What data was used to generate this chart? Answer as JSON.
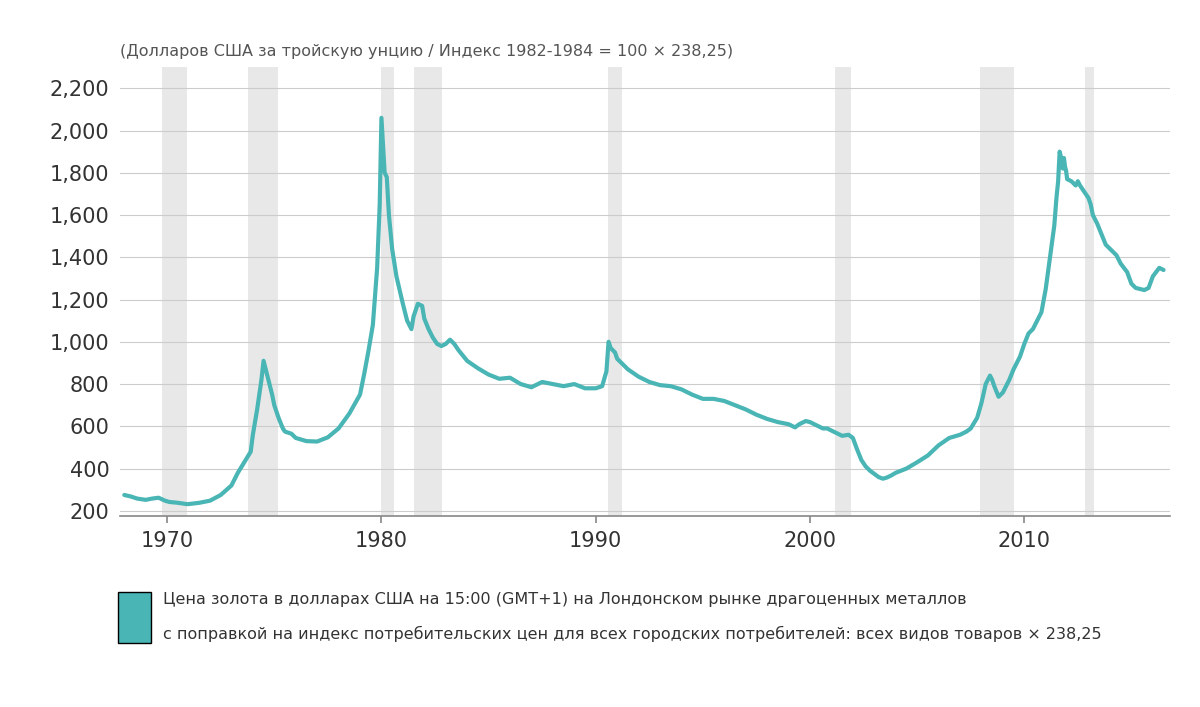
{
  "title": "(Долларов США за тройскую унцию / Индекс 1982-1984 = 100 × 238,25)",
  "line_color": "#4ab5b5",
  "background_color": "#ffffff",
  "recession_color": "#e8e8e8",
  "grid_color": "#cccccc",
  "text_color": "#333333",
  "title_color": "#555555",
  "legend_line1": "Цена золота в долларах США на 15:00 (GMT+1) на Лондонском рынке драгоценных металлов",
  "legend_line2": "с поправкой на индекс потребительских цен для всех городских потребителей: всех видов товаров × 238,25",
  "recession_bands": [
    [
      1969.75,
      1970.92
    ],
    [
      1973.75,
      1975.17
    ],
    [
      1980.0,
      1980.58
    ],
    [
      1981.5,
      1982.83
    ],
    [
      1990.58,
      1991.25
    ],
    [
      2001.17,
      2001.92
    ],
    [
      2007.92,
      2009.5
    ],
    [
      2012.83,
      2013.25
    ]
  ],
  "yticks": [
    200,
    400,
    600,
    800,
    1000,
    1200,
    1400,
    1600,
    1800,
    2000,
    2200
  ],
  "xticks": [
    1970,
    1980,
    1990,
    2000,
    2010
  ],
  "ylim": [
    175,
    2300
  ],
  "xlim": [
    1967.8,
    2016.8
  ],
  "data": [
    [
      1968.0,
      275
    ],
    [
      1968.3,
      268
    ],
    [
      1968.6,
      258
    ],
    [
      1969.0,
      252
    ],
    [
      1969.3,
      258
    ],
    [
      1969.6,
      262
    ],
    [
      1969.9,
      248
    ],
    [
      1970.1,
      242
    ],
    [
      1970.5,
      238
    ],
    [
      1970.9,
      232
    ],
    [
      1971.0,
      232
    ],
    [
      1971.5,
      238
    ],
    [
      1972.0,
      248
    ],
    [
      1972.5,
      275
    ],
    [
      1973.0,
      320
    ],
    [
      1973.3,
      380
    ],
    [
      1973.6,
      430
    ],
    [
      1973.9,
      480
    ],
    [
      1974.0,
      560
    ],
    [
      1974.2,
      680
    ],
    [
      1974.4,
      820
    ],
    [
      1974.5,
      910
    ],
    [
      1974.6,
      870
    ],
    [
      1974.8,
      790
    ],
    [
      1974.9,
      750
    ],
    [
      1975.0,
      700
    ],
    [
      1975.2,
      640
    ],
    [
      1975.4,
      590
    ],
    [
      1975.5,
      575
    ],
    [
      1975.8,
      565
    ],
    [
      1976.0,
      545
    ],
    [
      1976.5,
      530
    ],
    [
      1977.0,
      528
    ],
    [
      1977.5,
      548
    ],
    [
      1978.0,
      590
    ],
    [
      1978.5,
      660
    ],
    [
      1979.0,
      750
    ],
    [
      1979.2,
      850
    ],
    [
      1979.4,
      960
    ],
    [
      1979.6,
      1080
    ],
    [
      1979.8,
      1350
    ],
    [
      1979.92,
      1650
    ],
    [
      1980.0,
      2060
    ],
    [
      1980.08,
      1920
    ],
    [
      1980.15,
      1800
    ],
    [
      1980.25,
      1780
    ],
    [
      1980.35,
      1600
    ],
    [
      1980.5,
      1440
    ],
    [
      1980.7,
      1310
    ],
    [
      1981.0,
      1180
    ],
    [
      1981.2,
      1100
    ],
    [
      1981.4,
      1060
    ],
    [
      1981.5,
      1120
    ],
    [
      1981.7,
      1180
    ],
    [
      1981.9,
      1170
    ],
    [
      1982.0,
      1110
    ],
    [
      1982.2,
      1060
    ],
    [
      1982.4,
      1020
    ],
    [
      1982.6,
      990
    ],
    [
      1982.8,
      980
    ],
    [
      1983.0,
      990
    ],
    [
      1983.2,
      1010
    ],
    [
      1983.4,
      990
    ],
    [
      1983.6,
      960
    ],
    [
      1984.0,
      910
    ],
    [
      1984.5,
      875
    ],
    [
      1985.0,
      845
    ],
    [
      1985.5,
      825
    ],
    [
      1986.0,
      830
    ],
    [
      1986.5,
      800
    ],
    [
      1987.0,
      785
    ],
    [
      1987.5,
      810
    ],
    [
      1988.0,
      800
    ],
    [
      1988.5,
      790
    ],
    [
      1989.0,
      800
    ],
    [
      1989.5,
      780
    ],
    [
      1990.0,
      780
    ],
    [
      1990.3,
      790
    ],
    [
      1990.5,
      860
    ],
    [
      1990.6,
      1000
    ],
    [
      1990.7,
      970
    ],
    [
      1990.9,
      950
    ],
    [
      1991.0,
      920
    ],
    [
      1991.2,
      900
    ],
    [
      1991.5,
      870
    ],
    [
      1992.0,
      835
    ],
    [
      1992.5,
      810
    ],
    [
      1993.0,
      795
    ],
    [
      1993.5,
      790
    ],
    [
      1994.0,
      775
    ],
    [
      1994.5,
      750
    ],
    [
      1995.0,
      730
    ],
    [
      1995.5,
      730
    ],
    [
      1996.0,
      720
    ],
    [
      1996.5,
      700
    ],
    [
      1997.0,
      680
    ],
    [
      1997.5,
      655
    ],
    [
      1998.0,
      635
    ],
    [
      1998.5,
      620
    ],
    [
      1999.0,
      610
    ],
    [
      1999.3,
      595
    ],
    [
      1999.5,
      610
    ],
    [
      1999.8,
      625
    ],
    [
      2000.0,
      620
    ],
    [
      2000.2,
      610
    ],
    [
      2000.4,
      600
    ],
    [
      2000.6,
      590
    ],
    [
      2000.8,
      590
    ],
    [
      2001.0,
      580
    ],
    [
      2001.2,
      570
    ],
    [
      2001.5,
      555
    ],
    [
      2001.8,
      560
    ],
    [
      2002.0,
      545
    ],
    [
      2002.2,
      490
    ],
    [
      2002.4,
      440
    ],
    [
      2002.6,
      410
    ],
    [
      2002.8,
      390
    ],
    [
      2003.0,
      375
    ],
    [
      2003.2,
      360
    ],
    [
      2003.4,
      352
    ],
    [
      2003.6,
      358
    ],
    [
      2003.8,
      368
    ],
    [
      2004.0,
      380
    ],
    [
      2004.5,
      400
    ],
    [
      2005.0,
      430
    ],
    [
      2005.5,
      462
    ],
    [
      2006.0,
      510
    ],
    [
      2006.5,
      545
    ],
    [
      2007.0,
      560
    ],
    [
      2007.3,
      575
    ],
    [
      2007.5,
      590
    ],
    [
      2007.8,
      640
    ],
    [
      2008.0,
      710
    ],
    [
      2008.2,
      800
    ],
    [
      2008.4,
      840
    ],
    [
      2008.5,
      820
    ],
    [
      2008.6,
      790
    ],
    [
      2008.8,
      740
    ],
    [
      2009.0,
      760
    ],
    [
      2009.3,
      820
    ],
    [
      2009.5,
      870
    ],
    [
      2009.8,
      930
    ],
    [
      2010.0,
      990
    ],
    [
      2010.2,
      1040
    ],
    [
      2010.4,
      1060
    ],
    [
      2010.5,
      1080
    ],
    [
      2010.6,
      1100
    ],
    [
      2010.8,
      1140
    ],
    [
      2011.0,
      1250
    ],
    [
      2011.2,
      1400
    ],
    [
      2011.4,
      1550
    ],
    [
      2011.5,
      1680
    ],
    [
      2011.58,
      1760
    ],
    [
      2011.65,
      1900
    ],
    [
      2011.7,
      1880
    ],
    [
      2011.75,
      1840
    ],
    [
      2011.8,
      1820
    ],
    [
      2011.85,
      1870
    ],
    [
      2011.9,
      1830
    ],
    [
      2011.95,
      1810
    ],
    [
      2012.0,
      1770
    ],
    [
      2012.2,
      1760
    ],
    [
      2012.4,
      1740
    ],
    [
      2012.5,
      1760
    ],
    [
      2012.6,
      1740
    ],
    [
      2012.8,
      1710
    ],
    [
      2013.0,
      1680
    ],
    [
      2013.1,
      1650
    ],
    [
      2013.2,
      1600
    ],
    [
      2013.4,
      1560
    ],
    [
      2013.6,
      1510
    ],
    [
      2013.8,
      1460
    ],
    [
      2014.0,
      1440
    ],
    [
      2014.3,
      1410
    ],
    [
      2014.5,
      1370
    ],
    [
      2014.8,
      1330
    ],
    [
      2015.0,
      1275
    ],
    [
      2015.2,
      1255
    ],
    [
      2015.4,
      1250
    ],
    [
      2015.6,
      1245
    ],
    [
      2015.8,
      1255
    ],
    [
      2016.0,
      1310
    ],
    [
      2016.3,
      1350
    ],
    [
      2016.5,
      1340
    ]
  ]
}
